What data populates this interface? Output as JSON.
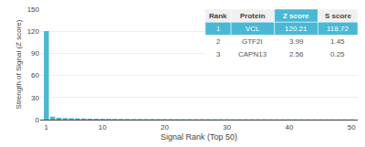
{
  "chart_data": {
    "type": "bar",
    "x": [
      1,
      2,
      3,
      4,
      5,
      6,
      7,
      8,
      9,
      10,
      11,
      12,
      13,
      14,
      15,
      16,
      17,
      18,
      19,
      20,
      21,
      22,
      23,
      24,
      25,
      26,
      27,
      28,
      29,
      30,
      31,
      32,
      33,
      34,
      35,
      36,
      37,
      38,
      39,
      40,
      41,
      42,
      43,
      44,
      45,
      46,
      47,
      48,
      49,
      50
    ],
    "values": [
      120.21,
      3.99,
      2.56,
      2.1,
      1.9,
      1.7,
      1.5,
      1.3,
      1.2,
      1.1,
      1.0,
      0.95,
      0.9,
      0.85,
      0.8,
      0.78,
      0.75,
      0.72,
      0.7,
      0.68,
      0.65,
      0.63,
      0.61,
      0.6,
      0.58,
      0.57,
      0.55,
      0.54,
      0.53,
      0.52,
      0.51,
      0.5,
      0.49,
      0.48,
      0.47,
      0.46,
      0.45,
      0.44,
      0.43,
      0.42,
      0.41,
      0.4,
      0.39,
      0.38,
      0.37,
      0.36,
      0.35,
      0.34,
      0.33,
      0.32
    ],
    "color": "#4ab8d4",
    "xlabel": "Signal Rank (Top 50)",
    "ylabel": "Strength of Signal (Z score)",
    "xlim": [
      0,
      51
    ],
    "ylim": [
      0,
      150
    ],
    "xticks": [
      1,
      10,
      20,
      30,
      40,
      50
    ],
    "yticks": [
      0,
      30,
      60,
      90,
      120,
      150
    ],
    "grid": true,
    "table": [
      [
        "Rank",
        "Protein",
        "Z score",
        "S score"
      ],
      [
        "1",
        "VCL",
        "120.21",
        "118.72"
      ],
      [
        "2",
        "GTF2I",
        "3.99",
        "1.45"
      ],
      [
        "3",
        "CAPN13",
        "2.56",
        "0.25"
      ]
    ]
  }
}
